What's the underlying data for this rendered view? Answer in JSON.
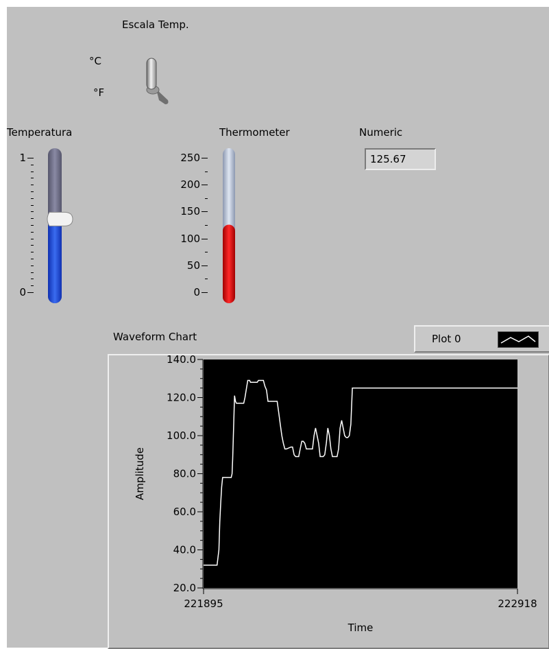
{
  "switch": {
    "title": "Escala Temp.",
    "label_c": "°C",
    "label_f": "°F",
    "position": "C"
  },
  "slider": {
    "title": "Temperatura",
    "tick_top": "1",
    "tick_bottom": "0",
    "value": 0.53,
    "min": 0,
    "max": 1
  },
  "thermometer": {
    "title": "Thermometer",
    "ticks": [
      "250",
      "200",
      "150",
      "100",
      "50",
      "0"
    ],
    "value": 125.67,
    "min": 0,
    "max": 250
  },
  "numeric": {
    "title": "Numeric",
    "value": "125.67"
  },
  "chart": {
    "title": "Waveform Chart",
    "legend_label": "Plot 0"
  },
  "colors": {
    "panel": "#c0c0c0",
    "slider_fill": "#1f4fd8",
    "slider_track": "#6b6b82",
    "thermo_fill": "#e01010",
    "thermo_track": "#b8c4d8",
    "plot_bg": "#000000",
    "trace": "#ffffff"
  },
  "chart_data": {
    "type": "line",
    "title": "Waveform Chart",
    "xlabel": "Time",
    "ylabel": "Amplitude",
    "xlim": [
      221895,
      222918
    ],
    "ylim": [
      20,
      140
    ],
    "x_tick_labels": [
      "221895",
      "222918"
    ],
    "y_tick_labels": [
      "140.0",
      "120.0",
      "100.0",
      "80.0",
      "60.0",
      "40.0",
      "20.0"
    ],
    "grid": false,
    "series": [
      {
        "name": "Plot 0",
        "x": [
          221895,
          221939,
          221945,
          221948,
          221951,
          221954,
          221957,
          221960,
          221963,
          221968,
          221985,
          221988,
          221990,
          221993,
          221996,
          221999,
          222002,
          222005,
          222008,
          222026,
          222030,
          222036,
          222039,
          222042,
          222045,
          222048,
          222052,
          222070,
          222074,
          222080,
          222090,
          222095,
          222100,
          222105,
          222110,
          222118,
          222122,
          222135,
          222140,
          222145,
          222150,
          222155,
          222160,
          222165,
          222180,
          222185,
          222190,
          222195,
          222200,
          222205,
          222210,
          222215,
          222220,
          222225,
          222230,
          222235,
          222240,
          222245,
          222250,
          222255,
          222260,
          222270,
          222275,
          222280,
          222285,
          222290,
          222295,
          222300,
          222305,
          222310,
          222315,
          222320,
          222325,
          222330,
          222335,
          222340,
          222345,
          222355,
          222360,
          222365,
          222370,
          222375,
          222380,
          222385,
          222390,
          222395,
          222400,
          222405,
          222918
        ],
        "y": [
          32,
          32,
          40,
          55,
          65,
          73,
          78,
          78,
          78,
          78,
          78,
          80,
          88,
          105,
          121,
          118,
          117,
          117,
          117,
          117,
          120,
          126,
          129,
          129,
          129,
          128,
          128,
          128,
          129,
          129,
          129,
          126,
          124,
          118,
          118,
          118,
          118,
          118,
          112,
          106,
          100,
          96,
          93,
          93,
          94,
          94,
          90,
          89,
          89,
          89,
          93,
          97,
          97,
          96,
          93,
          93,
          93,
          93,
          93,
          100,
          104,
          96,
          89,
          89,
          89,
          90,
          96,
          104,
          100,
          93,
          89,
          89,
          89,
          89,
          93,
          104,
          108,
          100,
          99,
          99,
          100,
          106,
          125,
          125,
          125,
          125,
          125,
          125,
          125
        ]
      }
    ]
  }
}
